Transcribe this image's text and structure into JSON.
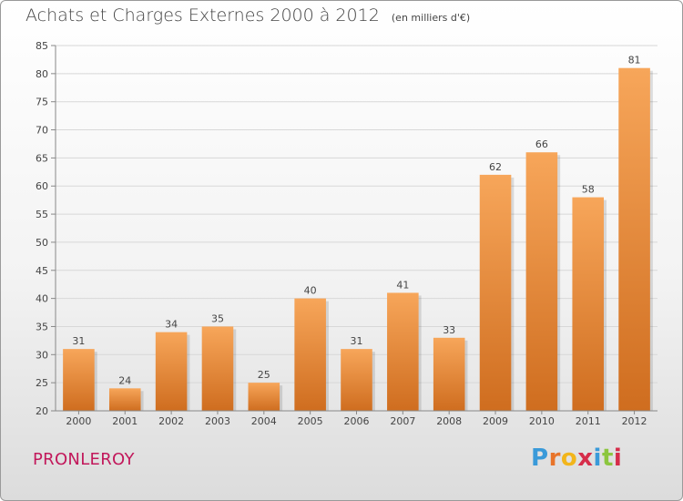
{
  "title": "Achats et Charges Externes 2000 à 2012",
  "unit": "(en milliers d'€)",
  "commune": "PRONLEROY",
  "logo": {
    "text": "Proxiti",
    "letter_colors": [
      "#3a9ad9",
      "#e8742a",
      "#f2b51b",
      "#d62d4a",
      "#3a9ad9",
      "#8cc63f",
      "#d62d4a"
    ]
  },
  "colors": {
    "bar_top": "#f7a65a",
    "bar_bottom": "#cf6d1f",
    "grid": "#d8d8d8",
    "axis_text": "#444444"
  },
  "chart_data": {
    "type": "bar",
    "title": "Achats et Charges Externes 2000 à 2012",
    "xlabel": "",
    "ylabel": "",
    "categories": [
      "2000",
      "2001",
      "2002",
      "2003",
      "2004",
      "2005",
      "2006",
      "2007",
      "2008",
      "2009",
      "2010",
      "2011",
      "2012"
    ],
    "values": [
      31,
      24,
      34,
      35,
      25,
      40,
      31,
      41,
      33,
      62,
      66,
      58,
      81
    ],
    "ylim": [
      20,
      85
    ],
    "yticks": [
      20,
      25,
      30,
      35,
      40,
      45,
      50,
      55,
      60,
      65,
      70,
      75,
      80,
      85
    ],
    "grid": true,
    "legend": "none"
  }
}
